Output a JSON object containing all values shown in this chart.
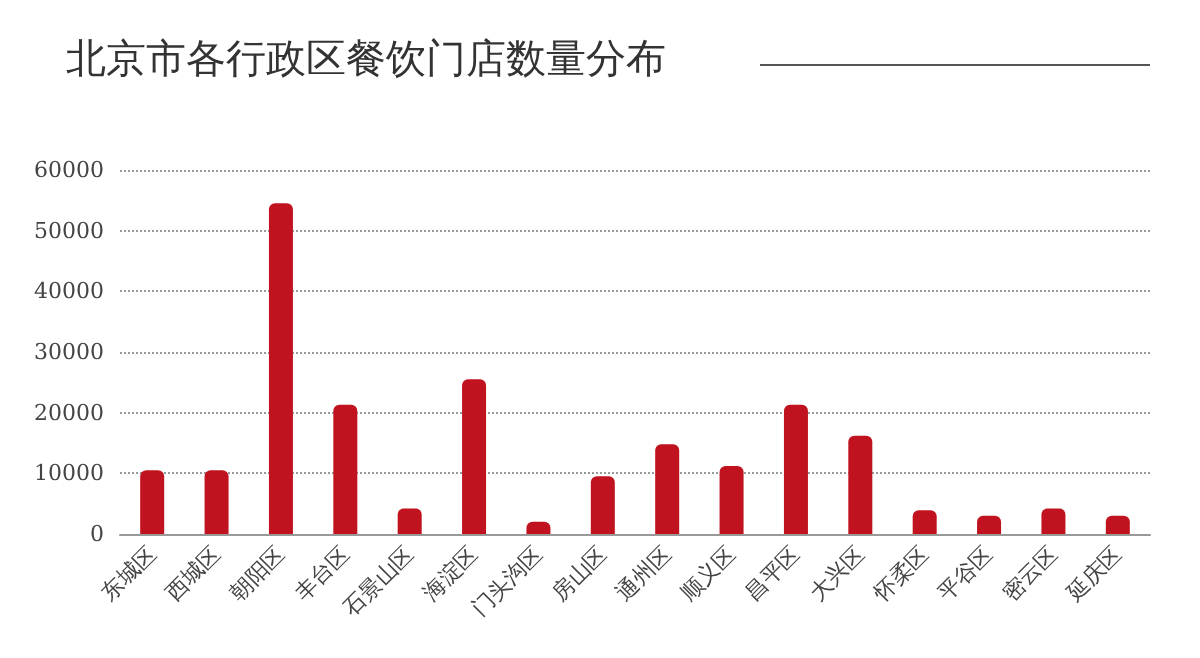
{
  "chart_data": {
    "type": "bar",
    "title": "北京市各行政区餐饮门店数量分布",
    "categories": [
      "东城区",
      "西城区",
      "朝阳区",
      "丰台区",
      "石景山区",
      "海淀区",
      "门头沟区",
      "房山区",
      "通州区",
      "顺义区",
      "昌平区",
      "大兴区",
      "怀柔区",
      "平谷区",
      "密云区",
      "延庆区"
    ],
    "values": [
      10500,
      10500,
      54500,
      21300,
      4200,
      25500,
      2000,
      9500,
      14800,
      11200,
      21300,
      16200,
      3900,
      3000,
      4200,
      3000
    ],
    "color": "#c0131f",
    "ylim": [
      0,
      60000
    ],
    "yticks": [
      0,
      10000,
      20000,
      30000,
      40000,
      50000,
      60000
    ],
    "grid": "y"
  }
}
